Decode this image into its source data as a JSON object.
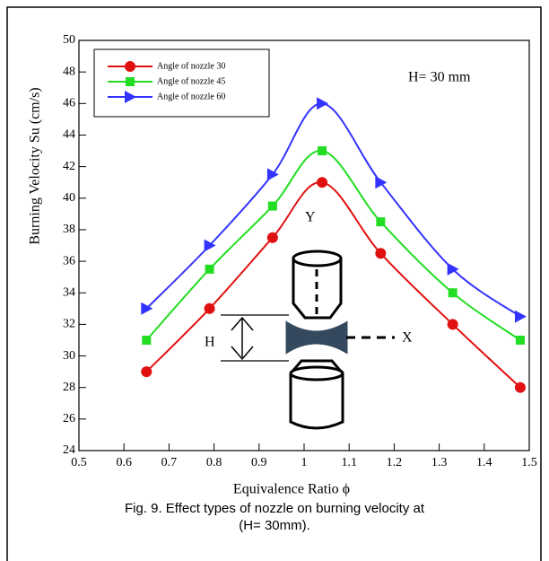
{
  "chart_data": {
    "type": "line",
    "caption": [
      "Fig. 9. Effect types of nozzle on burning velocity at",
      "(H= 30mm)."
    ],
    "x_label": "Equivalence Ratio  ϕ",
    "y_label": "Burning Velocity  Su  (cm/s)",
    "annotations": [
      "H= 30 mm",
      "Y",
      "X",
      "H"
    ],
    "x": [
      0.65,
      0.79,
      0.93,
      1.04,
      1.17,
      1.33,
      1.48
    ],
    "series": [
      {
        "name": "Angle of nozzle  30",
        "color": "#e01010",
        "marker": "circle",
        "values": [
          29,
          33,
          37.5,
          41,
          36.5,
          32,
          28
        ]
      },
      {
        "name": "Angle of nozzle  45",
        "color": "#22dd22",
        "marker": "square",
        "values": [
          31,
          35.5,
          39.5,
          43,
          38.5,
          34,
          31
        ]
      },
      {
        "name": "Angle of nozzle  60",
        "color": "#3333ff",
        "marker": "triangle-right",
        "values": [
          33,
          37,
          41.5,
          46,
          41,
          35.5,
          32.5
        ]
      }
    ],
    "xlim": [
      0.5,
      1.5
    ],
    "xticks": [
      0.5,
      0.6,
      0.7,
      0.8,
      0.9,
      1,
      1.1,
      1.2,
      1.3,
      1.4,
      1.5
    ],
    "ylim": [
      24,
      50
    ],
    "yticks": [
      24,
      26,
      28,
      30,
      32,
      34,
      36,
      38,
      40,
      42,
      44,
      46,
      48,
      50
    ],
    "legend": "upper-left"
  }
}
